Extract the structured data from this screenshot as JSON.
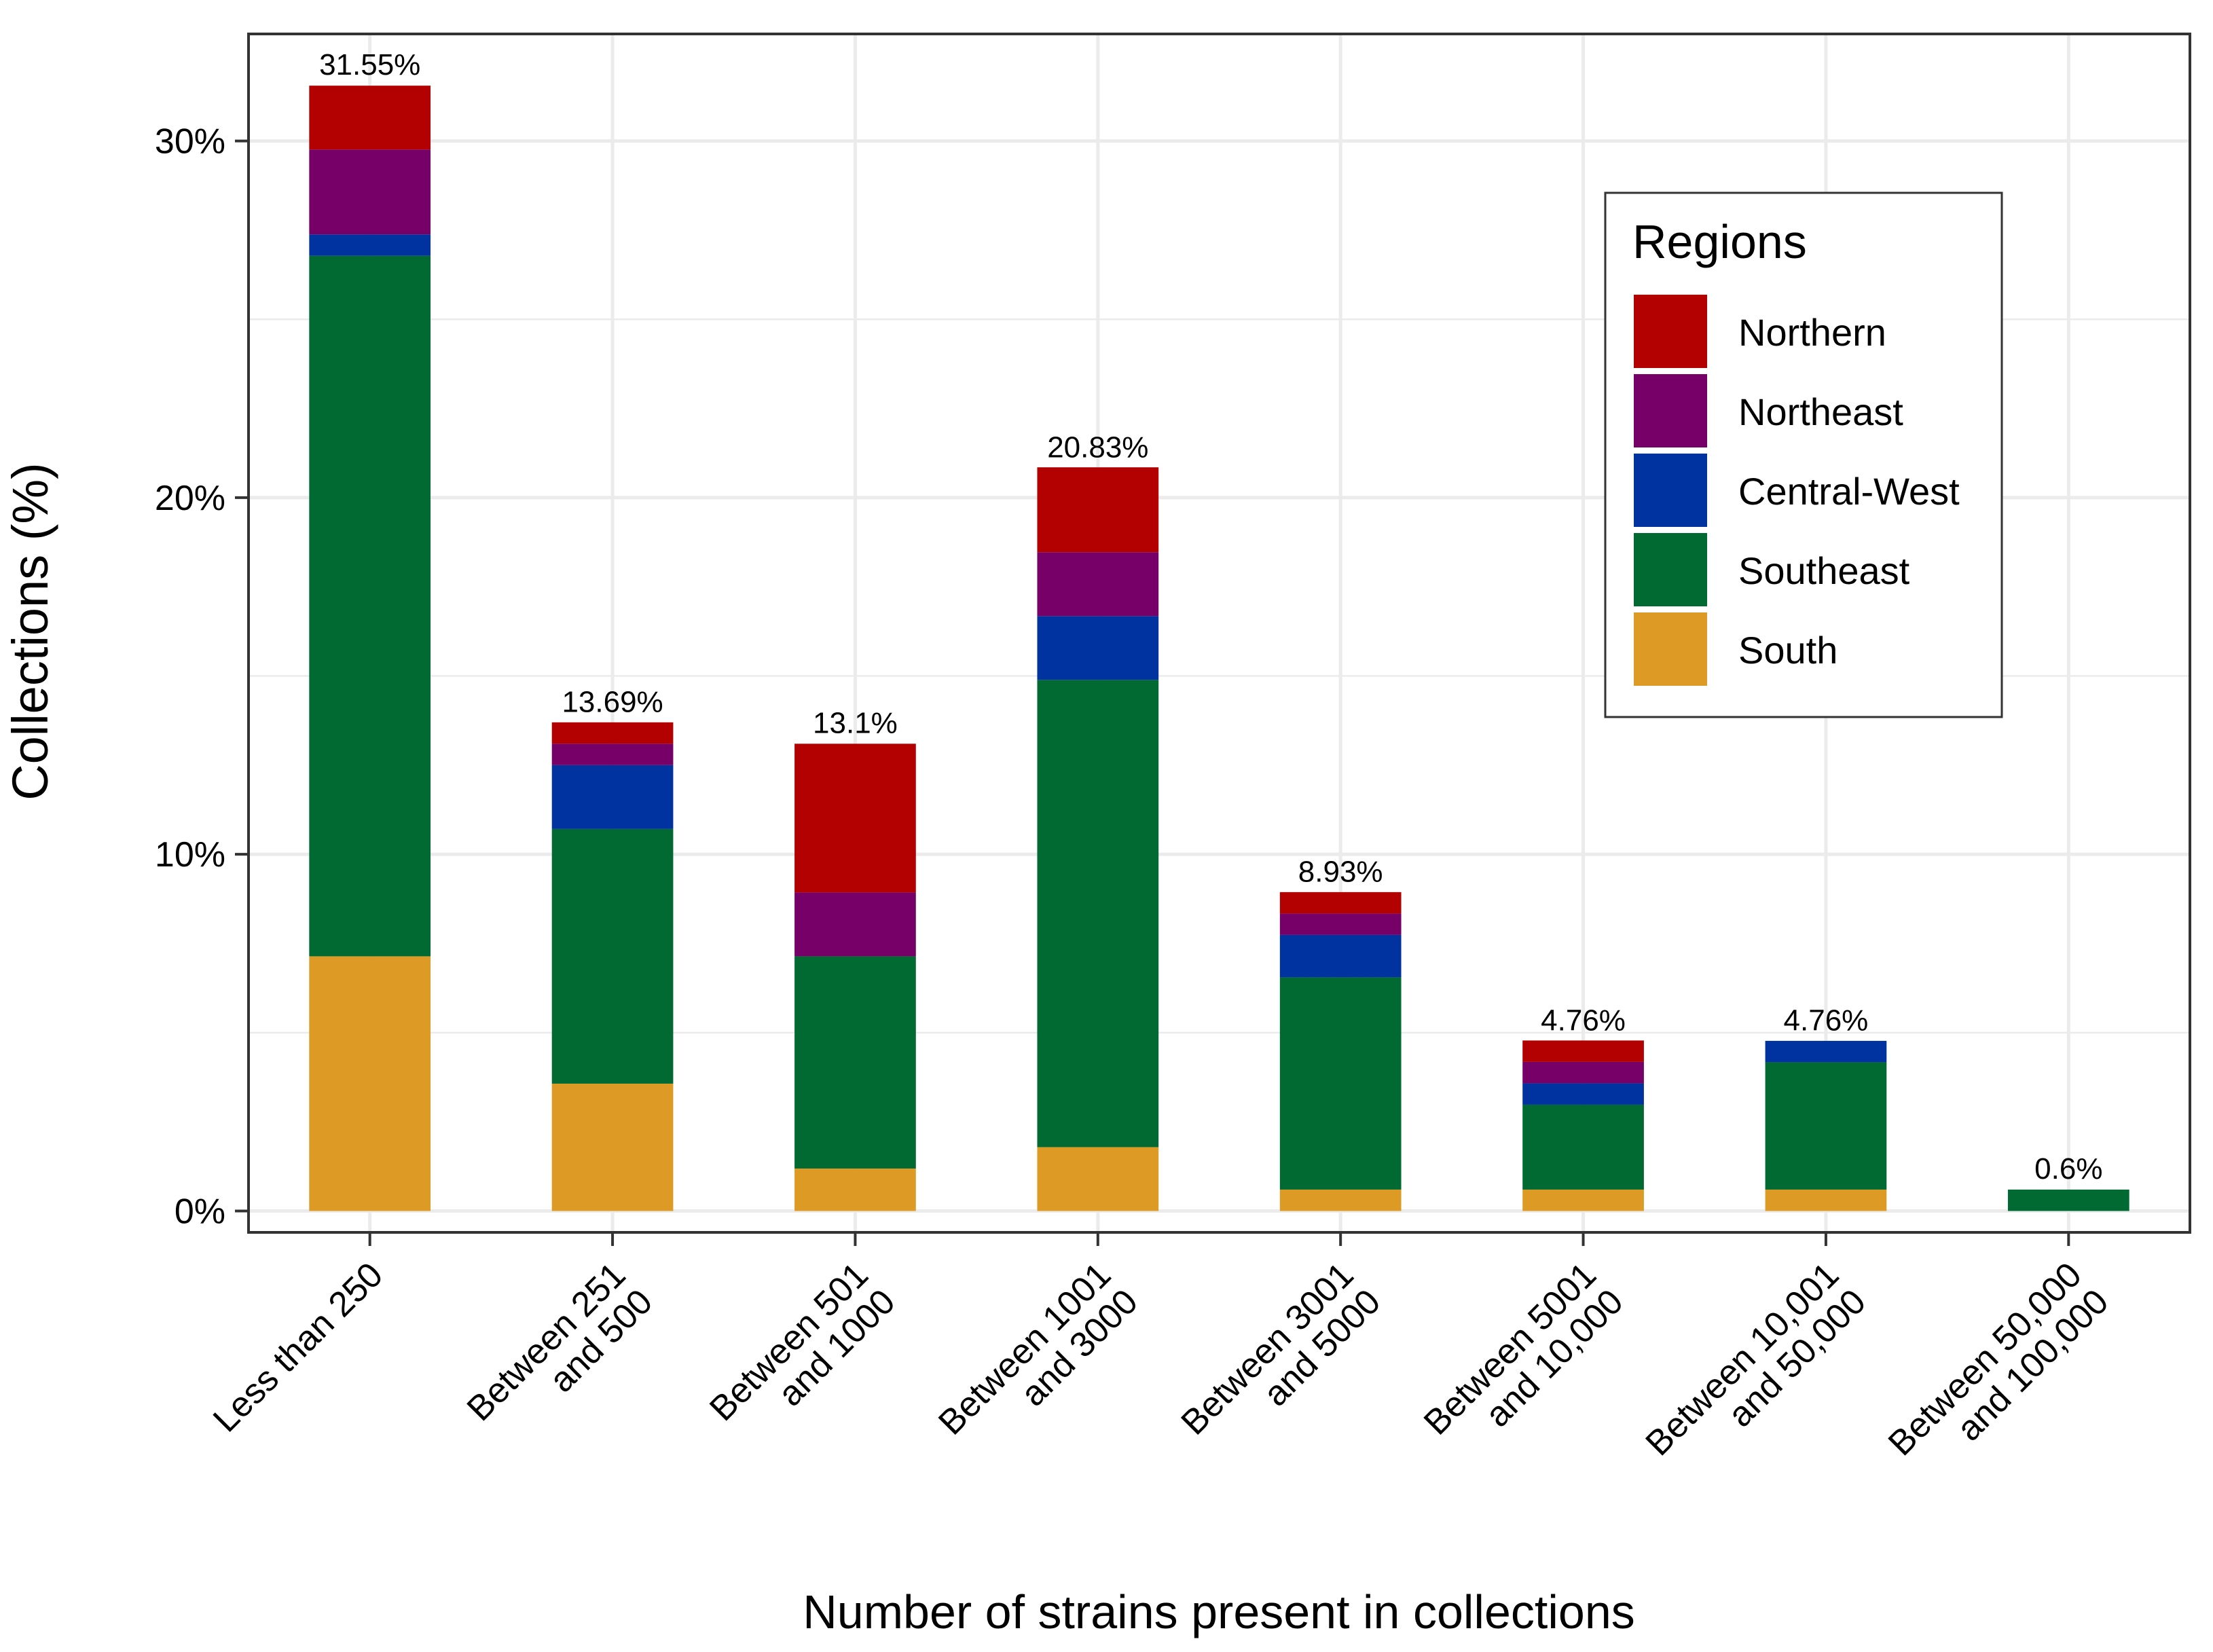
{
  "chart_data": {
    "type": "bar",
    "stacked": true,
    "title": "",
    "xlabel": "Number of strains present in collections",
    "ylabel": "Collections (%)",
    "ylim": [
      -0.6,
      33
    ],
    "yticks": [
      0,
      10,
      20,
      30
    ],
    "ytick_labels": [
      "0%",
      "10%",
      "20%",
      "30%"
    ],
    "grid": true,
    "categories": [
      [
        "Less than 250"
      ],
      [
        "Between 251",
        "and 500"
      ],
      [
        "Between 501",
        "and 1000"
      ],
      [
        "Between 1001",
        "and 3000"
      ],
      [
        "Between 3001",
        "and 5000"
      ],
      [
        "Between 5001",
        "and 10,000"
      ],
      [
        "Between 10,001",
        "and 50,000"
      ],
      [
        "Between 50,000",
        "and 100,000"
      ]
    ],
    "totals": [
      31.55,
      13.69,
      13.1,
      20.83,
      8.93,
      4.76,
      4.76,
      0.6
    ],
    "total_labels": [
      "31.55%",
      "13.69%",
      "13.1%",
      "20.83%",
      "8.93%",
      "4.76%",
      "4.76%",
      "0.6%"
    ],
    "series": [
      {
        "name": "South",
        "color": "#DD9A24",
        "values": [
          7.14,
          3.57,
          1.19,
          1.79,
          0.6,
          0.6,
          0.6,
          0
        ]
      },
      {
        "name": "Southeast",
        "color": "#016A33",
        "values": [
          19.64,
          7.14,
          5.95,
          13.1,
          5.95,
          2.38,
          3.57,
          0.6
        ]
      },
      {
        "name": "Central-West",
        "color": "#0032A0",
        "values": [
          0.6,
          1.79,
          0,
          1.79,
          1.19,
          0.6,
          0.6,
          0
        ]
      },
      {
        "name": "Northeast",
        "color": "#760068",
        "values": [
          2.38,
          0.6,
          1.79,
          1.79,
          0.6,
          0.6,
          0,
          0
        ]
      },
      {
        "name": "Northern",
        "color": "#B30000",
        "values": [
          1.79,
          0.6,
          4.17,
          2.38,
          0.6,
          0.6,
          0,
          0
        ]
      }
    ],
    "legend": {
      "title": "Regions",
      "placement": "top-right",
      "order": [
        "Northern",
        "Northeast",
        "Central-West",
        "Southeast",
        "South"
      ]
    }
  }
}
